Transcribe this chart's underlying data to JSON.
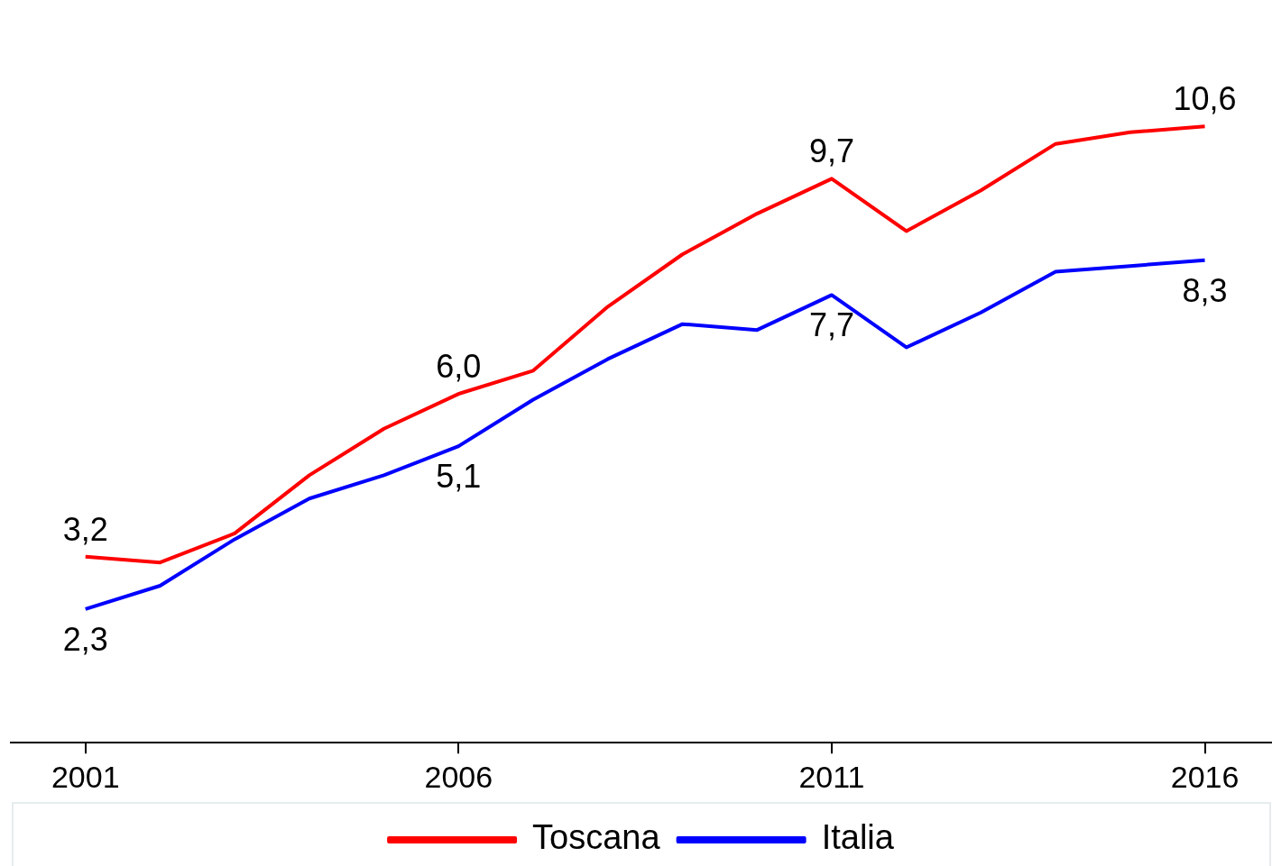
{
  "chart_data": {
    "type": "line",
    "x": [
      2001,
      2002,
      2003,
      2004,
      2005,
      2006,
      2007,
      2008,
      2009,
      2010,
      2011,
      2012,
      2013,
      2014,
      2015,
      2016
    ],
    "series": [
      {
        "name": "Toscana",
        "color": "#ff0000",
        "values": [
          3.2,
          3.1,
          3.6,
          4.6,
          5.4,
          6.0,
          6.4,
          7.5,
          8.4,
          9.1,
          9.7,
          8.8,
          9.5,
          10.3,
          10.5,
          10.6
        ],
        "value_labels": [
          "3,2",
          null,
          null,
          null,
          null,
          "6,0",
          null,
          null,
          null,
          null,
          "9,7",
          null,
          null,
          null,
          null,
          "10,6"
        ]
      },
      {
        "name": "Italia",
        "color": "#0000ff",
        "values": [
          2.3,
          2.7,
          3.5,
          4.2,
          4.6,
          5.1,
          5.9,
          6.6,
          7.2,
          7.1,
          7.7,
          6.8,
          7.4,
          8.1,
          8.2,
          8.3
        ],
        "value_labels": [
          "2,3",
          null,
          null,
          null,
          null,
          "5,1",
          null,
          null,
          null,
          null,
          "7,7",
          null,
          null,
          null,
          null,
          "8,3"
        ]
      }
    ],
    "xlim": [
      2000,
      2016.9
    ],
    "xticks": [
      2001,
      2006,
      2011,
      2016
    ],
    "tick_labels": "x",
    "grid": false,
    "legend": "bottom",
    "marker": "none",
    "line_style": "solid"
  }
}
